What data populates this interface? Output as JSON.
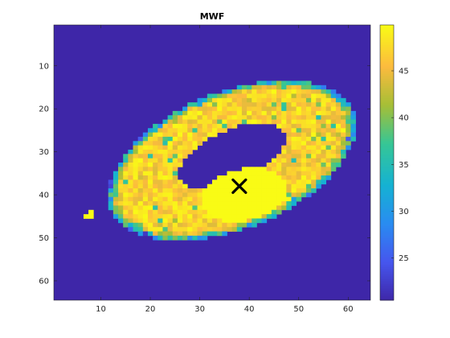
{
  "chart_data": {
    "type": "heatmap",
    "title": "MWF",
    "xlabel": "",
    "ylabel": "",
    "xlim": [
      0.5,
      64.5
    ],
    "ylim": [
      0.5,
      64.5
    ],
    "y_reversed": true,
    "x_ticks": [
      10,
      20,
      30,
      40,
      50,
      60
    ],
    "y_ticks": [
      10,
      20,
      30,
      40,
      50,
      60
    ],
    "colorbar": {
      "min": 20.5,
      "max": 49.9,
      "ticks": [
        25,
        30,
        35,
        40,
        45
      ],
      "colormap": "parula"
    },
    "background_value": 20.5,
    "regions": [
      {
        "name": "outer ring",
        "shape": "ellipse",
        "cx": 36.5,
        "cy": 32.0,
        "rx": 27.0,
        "ry": 15.5,
        "rotation_deg": -28,
        "value_range": [
          43,
          49.9
        ]
      },
      {
        "name": "inner hole",
        "shape": "ellipse",
        "cx": 36.5,
        "cy": 31.0,
        "rx": 12.0,
        "ry": 6.0,
        "rotation_deg": -28,
        "value": 20.5
      },
      {
        "name": "bright blob",
        "shape": "ellipse",
        "cx": 39.0,
        "cy": 40.0,
        "rx": 9.0,
        "ry": 6.0,
        "rotation_deg": -15,
        "value": 49.9
      },
      {
        "name": "small spot",
        "shape": "rect",
        "x": [
          7,
          8
        ],
        "y": [
          44,
          45
        ],
        "value": 49.9
      }
    ],
    "marker": {
      "symbol": "x",
      "x": 38,
      "y": 38,
      "color": "#000000"
    }
  }
}
